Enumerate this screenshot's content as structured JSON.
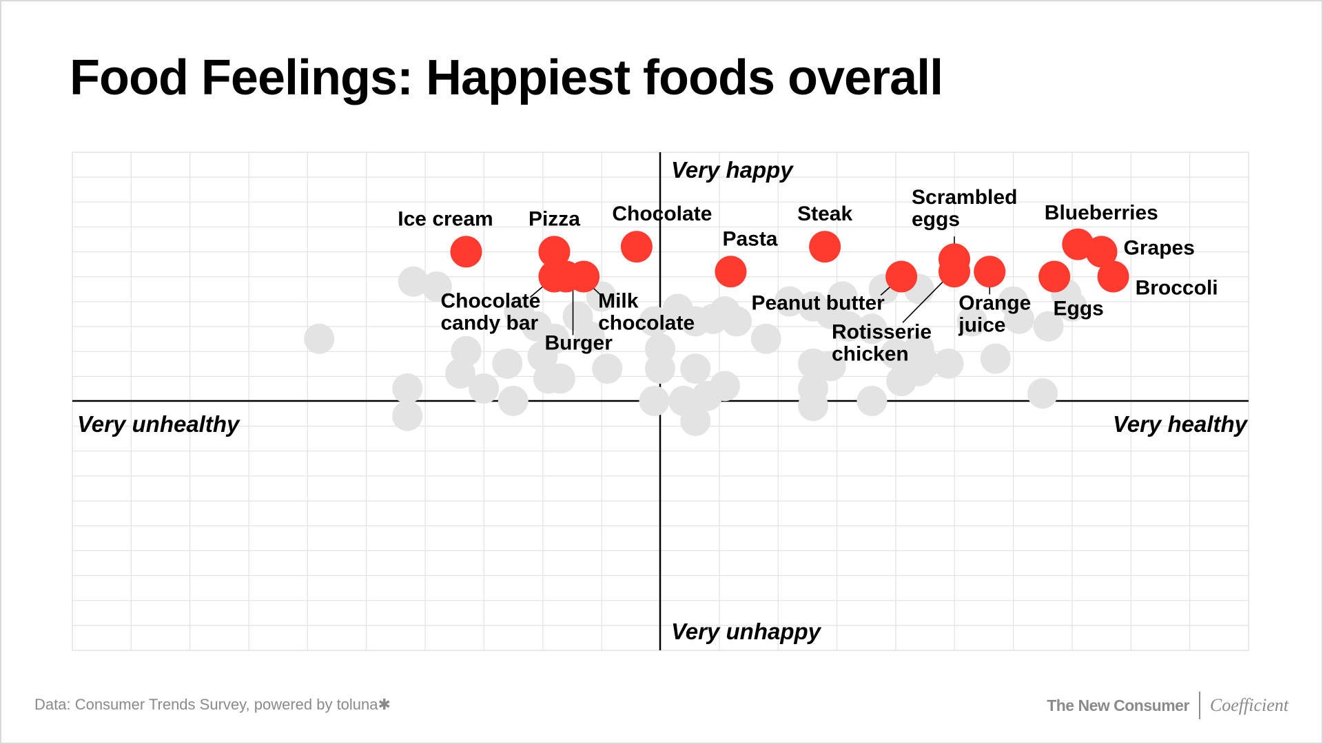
{
  "page": {
    "title": "Food Feelings: Happiest foods overall",
    "footer_source": "Data: Consumer Trends Survey, powered by toluna",
    "footer_source_mark": "✱",
    "brand_left": "The New Consumer",
    "brand_right": "Coefficient"
  },
  "colors": {
    "highlight": "#ff3b30",
    "background_points": "#e3e3e3",
    "grid": "#e2e2e2",
    "axis": "#000000"
  },
  "chart_data": {
    "type": "scatter",
    "title": "Food Feelings: Happiest foods overall",
    "xlabel_left": "Very unhealthy",
    "xlabel_right": "Very healthy",
    "ylabel_top": "Very happy",
    "ylabel_bottom": "Very unhappy",
    "xlim": [
      -10,
      10
    ],
    "ylim": [
      -10,
      10
    ],
    "grid": true,
    "highlighted": [
      {
        "name": "Ice cream",
        "x": -3.3,
        "y": 6.0
      },
      {
        "name": "Pizza",
        "x": -1.8,
        "y": 6.0
      },
      {
        "name": "Chocolate candy bar",
        "x": -1.8,
        "y": 5.0
      },
      {
        "name": "Burger",
        "x": -1.6,
        "y": 5.0
      },
      {
        "name": "Milk chocolate",
        "x": -1.3,
        "y": 5.0
      },
      {
        "name": "Chocolate",
        "x": -0.4,
        "y": 6.2
      },
      {
        "name": "Pasta",
        "x": 1.2,
        "y": 5.2
      },
      {
        "name": "Steak",
        "x": 2.8,
        "y": 6.2
      },
      {
        "name": "Peanut butter",
        "x": 4.1,
        "y": 5.0
      },
      {
        "name": "Scrambled eggs",
        "x": 5.0,
        "y": 5.7
      },
      {
        "name": "Rotisserie chicken",
        "x": 5.0,
        "y": 5.2
      },
      {
        "name": "Orange juice",
        "x": 5.6,
        "y": 5.2
      },
      {
        "name": "Eggs",
        "x": 6.7,
        "y": 5.0
      },
      {
        "name": "Blueberries",
        "x": 7.1,
        "y": 6.3
      },
      {
        "name": "Grapes",
        "x": 7.5,
        "y": 6.0
      },
      {
        "name": "Broccoli",
        "x": 7.7,
        "y": 5.0
      }
    ],
    "other_points": [
      {
        "x": -5.8,
        "y": 2.5
      },
      {
        "x": -4.2,
        "y": 4.8
      },
      {
        "x": -3.8,
        "y": 4.6
      },
      {
        "x": -4.3,
        "y": 0.5
      },
      {
        "x": -4.3,
        "y": -0.6
      },
      {
        "x": -3.4,
        "y": 1.1
      },
      {
        "x": -3.3,
        "y": 2.0
      },
      {
        "x": -3.0,
        "y": 0.5
      },
      {
        "x": -2.6,
        "y": 1.5
      },
      {
        "x": -2.5,
        "y": 0.0
      },
      {
        "x": -2.4,
        "y": 3.6
      },
      {
        "x": -2.1,
        "y": 3.0
      },
      {
        "x": -1.9,
        "y": 0.9
      },
      {
        "x": -2.0,
        "y": 1.8
      },
      {
        "x": -1.7,
        "y": 0.9
      },
      {
        "x": -1.4,
        "y": 3.4
      },
      {
        "x": -1.2,
        "y": 2.6
      },
      {
        "x": -0.9,
        "y": 1.3
      },
      {
        "x": -1.0,
        "y": 4.2
      },
      {
        "x": -0.1,
        "y": 3.2
      },
      {
        "x": 0.0,
        "y": 2.1
      },
      {
        "x": 0.0,
        "y": 1.3
      },
      {
        "x": 0.3,
        "y": 3.7
      },
      {
        "x": 0.6,
        "y": 3.2
      },
      {
        "x": 0.9,
        "y": 3.3
      },
      {
        "x": 1.3,
        "y": 3.2
      },
      {
        "x": 0.6,
        "y": 1.3
      },
      {
        "x": 1.1,
        "y": 0.6
      },
      {
        "x": 0.8,
        "y": 0.2
      },
      {
        "x": 0.4,
        "y": 0.0
      },
      {
        "x": 0.6,
        "y": -0.8
      },
      {
        "x": 1.8,
        "y": 2.5
      },
      {
        "x": 2.2,
        "y": 4.0
      },
      {
        "x": 2.6,
        "y": 3.8
      },
      {
        "x": 2.6,
        "y": 1.5
      },
      {
        "x": 2.6,
        "y": 0.5
      },
      {
        "x": 3.1,
        "y": 4.2
      },
      {
        "x": 2.9,
        "y": 3.5
      },
      {
        "x": 3.2,
        "y": 3.0
      },
      {
        "x": 2.9,
        "y": 1.4
      },
      {
        "x": 2.6,
        "y": -0.2
      },
      {
        "x": 3.6,
        "y": 2.9
      },
      {
        "x": 3.8,
        "y": 4.5
      },
      {
        "x": 4.4,
        "y": 4.5
      },
      {
        "x": 4.0,
        "y": 1.9
      },
      {
        "x": 4.4,
        "y": 2.1
      },
      {
        "x": 4.5,
        "y": 1.5
      },
      {
        "x": 4.1,
        "y": 0.8
      },
      {
        "x": 4.4,
        "y": 1.2
      },
      {
        "x": 4.9,
        "y": 1.5
      },
      {
        "x": 5.3,
        "y": 3.2
      },
      {
        "x": 5.7,
        "y": 1.7
      },
      {
        "x": 6.0,
        "y": 4.0
      },
      {
        "x": 6.1,
        "y": 3.3
      },
      {
        "x": 6.6,
        "y": 3.0
      },
      {
        "x": 6.5,
        "y": 0.3
      },
      {
        "x": 6.9,
        "y": 4.3
      },
      {
        "x": 7.0,
        "y": 3.8
      },
      {
        "x": 3.6,
        "y": 0.0
      },
      {
        "x": -0.1,
        "y": 0.0
      },
      {
        "x": 1.1,
        "y": 3.6
      },
      {
        "x": -1.8,
        "y": 2.5
      }
    ]
  }
}
